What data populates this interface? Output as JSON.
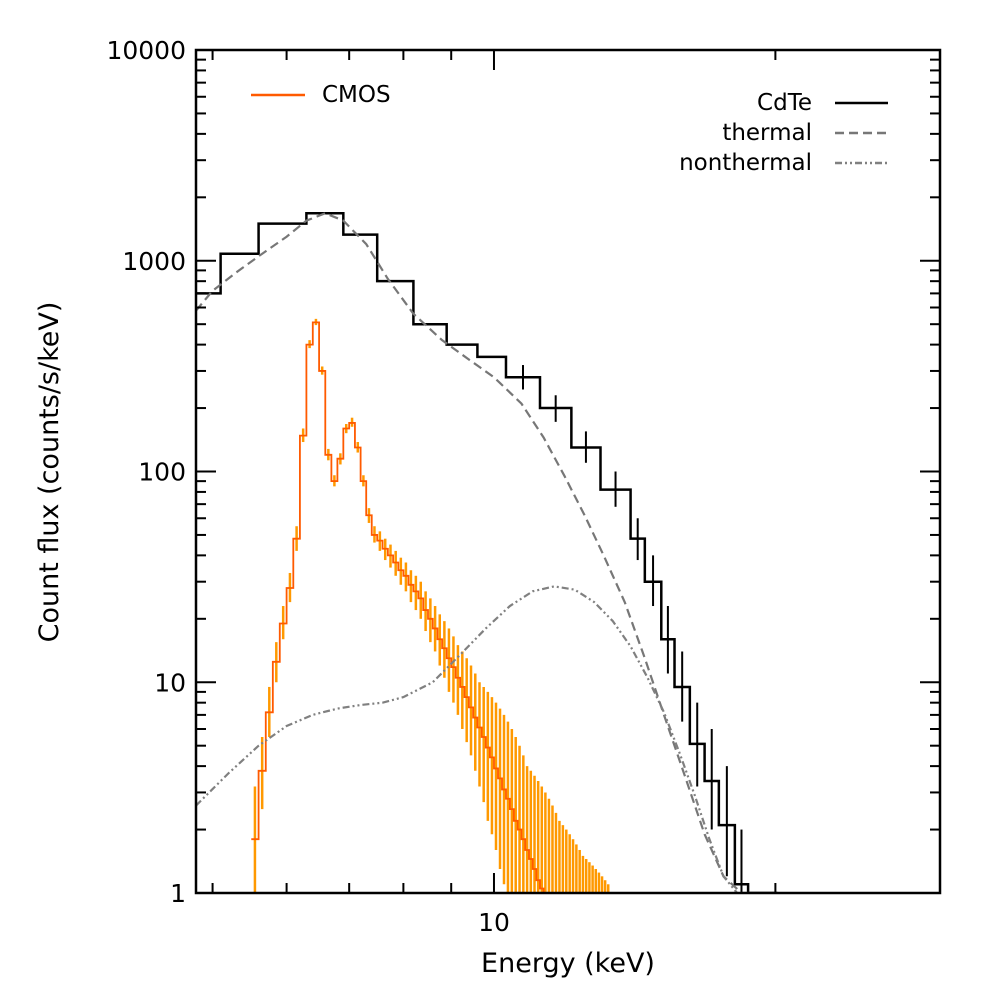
{
  "chart_data": {
    "type": "line",
    "title": "",
    "xlabel": "Energy (keV)",
    "ylabel": "Count flux (counts/s/keV)",
    "x_scale": "log",
    "y_scale": "log",
    "xlim": [
      4.8,
      30
    ],
    "ylim": [
      1,
      10000
    ],
    "x_ticks": [
      {
        "value": 10,
        "label": "10"
      }
    ],
    "y_ticks": [
      {
        "value": 1,
        "label": "1"
      },
      {
        "value": 10,
        "label": "10"
      },
      {
        "value": 100,
        "label": "100"
      },
      {
        "value": 1000,
        "label": "1000"
      },
      {
        "value": 10000,
        "label": "10000"
      }
    ],
    "grid": false,
    "colors": {
      "cdte": "#000000",
      "cmos": "#ff5a00",
      "cmos_err": "#ff9900",
      "thermal": "#777777",
      "nonthermal": "#808080"
    },
    "legends": [
      {
        "group": "left",
        "name": "CMOS",
        "series": "cmos",
        "style": "solid"
      },
      {
        "group": "right",
        "name": "CdTe",
        "series": "cdte",
        "style": "solid"
      },
      {
        "group": "right",
        "name": "thermal",
        "series": "thermal",
        "style": "dashed"
      },
      {
        "group": "right",
        "name": "nonthermal",
        "series": "nonthermal",
        "style": "dashdotdot"
      }
    ],
    "series": [
      {
        "id": "cdte",
        "name": "CdTe",
        "kind": "step",
        "bin_edges": [
          4.8,
          5.1,
          5.6,
          6.3,
          6.9,
          7.5,
          8.2,
          8.9,
          9.6,
          10.3,
          11.2,
          12.1,
          13.0,
          14.0,
          14.5,
          15.1,
          15.6,
          16.2,
          16.8,
          17.4,
          18.1,
          18.7,
          19.4,
          20.1
        ],
        "values": [
          700,
          1080,
          1500,
          1680,
          1330,
          800,
          500,
          400,
          350,
          280,
          200,
          130,
          82,
          48,
          30,
          16,
          9.5,
          5.1,
          3.4,
          2.1,
          1.1,
          1.0,
          1.0
        ],
        "err_hi": [
          0,
          0,
          0,
          0,
          0,
          0,
          0,
          0,
          0,
          320,
          230,
          155,
          100,
          60,
          40,
          23,
          14,
          8,
          6,
          4,
          2,
          0,
          0
        ],
        "err_lo": [
          0,
          0,
          0,
          0,
          0,
          0,
          0,
          0,
          0,
          245,
          172,
          110,
          68,
          38,
          23,
          11,
          6.5,
          3.2,
          2.0,
          1.2,
          1.0,
          0,
          0
        ]
      },
      {
        "id": "cmos",
        "name": "CMOS",
        "kind": "step",
        "bin_edges": [
          5.5,
          5.6,
          5.7,
          5.8,
          5.9,
          6.0,
          6.1,
          6.2,
          6.3,
          6.4,
          6.5,
          6.6,
          6.7,
          6.8,
          6.9,
          7.0,
          7.1,
          7.2,
          7.3,
          7.4,
          7.5,
          7.6,
          7.7,
          7.8,
          7.9,
          8.0,
          8.1,
          8.2,
          8.3,
          8.4,
          8.5,
          8.6,
          8.7,
          8.8,
          8.9,
          9.0,
          9.1,
          9.2,
          9.3,
          9.4,
          9.5,
          9.6,
          9.7,
          9.8,
          9.9,
          10.0,
          10.1,
          10.2,
          10.3,
          10.4,
          10.5,
          10.6,
          10.7,
          10.8,
          10.9,
          11.0,
          11.1,
          11.2,
          11.3,
          11.4,
          11.5,
          11.6,
          11.7,
          11.8,
          11.9,
          12.0,
          12.1,
          12.2,
          12.3,
          12.4,
          12.5,
          12.6,
          12.7,
          12.8,
          12.9,
          13.0,
          13.1,
          13.2,
          13.3
        ],
        "values": [
          1.8,
          3.8,
          7.2,
          12.5,
          19,
          28,
          48,
          148,
          400,
          510,
          300,
          120,
          90,
          115,
          160,
          170,
          130,
          90,
          62,
          50,
          47,
          43,
          40,
          37,
          34,
          32,
          29,
          27,
          25,
          22,
          20,
          18,
          16,
          14.5,
          13,
          11.8,
          10.5,
          9.5,
          8.5,
          7.6,
          6.8,
          6.1,
          5.5,
          4.9,
          4.4,
          3.9,
          3.5,
          3.1,
          2.8,
          2.5,
          2.2,
          2.0,
          1.8,
          1.6,
          1.45,
          1.3,
          1.15,
          1.05,
          1.0,
          1.0,
          1.0,
          1.0,
          1.0,
          1.0,
          1.0,
          1.0,
          1.0,
          1.0,
          1.0,
          1.0,
          1.0,
          1.0,
          1.0,
          1.0,
          1.0,
          1.0,
          1.0,
          1.0
        ],
        "err_hi": [
          3.2,
          5.5,
          9.5,
          15.5,
          23,
          33,
          55,
          160,
          420,
          530,
          315,
          128,
          96,
          122,
          168,
          180,
          138,
          96,
          67,
          55,
          52,
          48,
          45,
          42,
          39,
          37,
          34,
          32,
          30,
          27,
          25,
          23,
          21,
          19.5,
          18,
          16.5,
          15,
          14,
          13,
          12,
          11,
          10,
          9.5,
          9,
          8.5,
          8,
          7.5,
          7,
          6.5,
          6,
          5.5,
          5,
          4.5,
          4,
          3.8,
          3.6,
          3.4,
          3.2,
          3.0,
          2.8,
          2.6,
          2.4,
          2.2,
          2.1,
          2.0,
          1.9,
          1.8,
          1.7,
          1.6,
          1.5,
          1.45,
          1.4,
          1.35,
          1.3,
          1.25,
          1.2,
          1.15,
          1.1
        ],
        "err_lo": [
          1.0,
          2.5,
          5.5,
          10,
          16,
          24,
          42,
          138,
          385,
          495,
          288,
          113,
          85,
          108,
          152,
          163,
          123,
          85,
          57,
          46,
          42,
          38,
          35,
          32,
          29,
          27,
          24,
          22,
          20,
          17.5,
          15.5,
          14,
          12,
          10.5,
          9,
          8,
          7,
          6,
          5.2,
          4.5,
          3.8,
          3.2,
          2.7,
          2.2,
          1.9,
          1.6,
          1.3,
          1.1,
          1.0,
          1.0,
          1.0,
          1.0,
          1.0,
          1.0,
          1.0,
          1.0,
          1.0,
          1.0,
          1.0,
          1.0,
          1.0,
          1.0,
          1.0,
          1.0,
          1.0,
          1.0,
          1.0,
          1.0,
          1.0,
          1.0,
          1.0,
          1.0,
          1.0,
          1.0,
          1.0,
          1.0,
          1.0,
          1.0
        ]
      },
      {
        "id": "thermal",
        "name": "thermal",
        "kind": "line",
        "style": "dashed",
        "x": [
          4.8,
          5.0,
          5.3,
          5.6,
          6.0,
          6.3,
          6.6,
          6.9,
          7.3,
          7.7,
          8.2,
          8.8,
          9.4,
          10.0,
          10.7,
          11.3,
          11.9,
          12.5,
          13.1,
          13.8,
          14.5,
          15.2,
          16.0,
          16.8,
          17.6,
          18.4,
          19.2
        ],
        "y": [
          580,
          720,
          880,
          1050,
          1300,
          1550,
          1680,
          1550,
          1200,
          820,
          560,
          420,
          340,
          280,
          210,
          145,
          95,
          62,
          40,
          24,
          13,
          7,
          3.6,
          1.9,
          1.2,
          1.0,
          1.0
        ]
      },
      {
        "id": "nonthermal",
        "name": "nonthermal",
        "kind": "line",
        "style": "dashdotdot",
        "x": [
          4.8,
          5.2,
          5.6,
          6.0,
          6.4,
          6.8,
          7.2,
          7.6,
          8.0,
          8.6,
          9.2,
          9.8,
          10.4,
          11.0,
          11.6,
          12.2,
          12.8,
          13.4,
          14.0,
          14.6,
          15.2,
          15.8,
          16.4,
          17.0,
          17.6,
          18.2
        ],
        "y": [
          2.6,
          3.7,
          5.0,
          6.2,
          7.0,
          7.5,
          7.8,
          8.0,
          8.5,
          10.0,
          13.5,
          18.0,
          23.0,
          27.0,
          28.5,
          27.5,
          24.0,
          19.5,
          14.8,
          10.5,
          7.2,
          4.6,
          2.9,
          1.8,
          1.2,
          1.0
        ]
      }
    ]
  }
}
